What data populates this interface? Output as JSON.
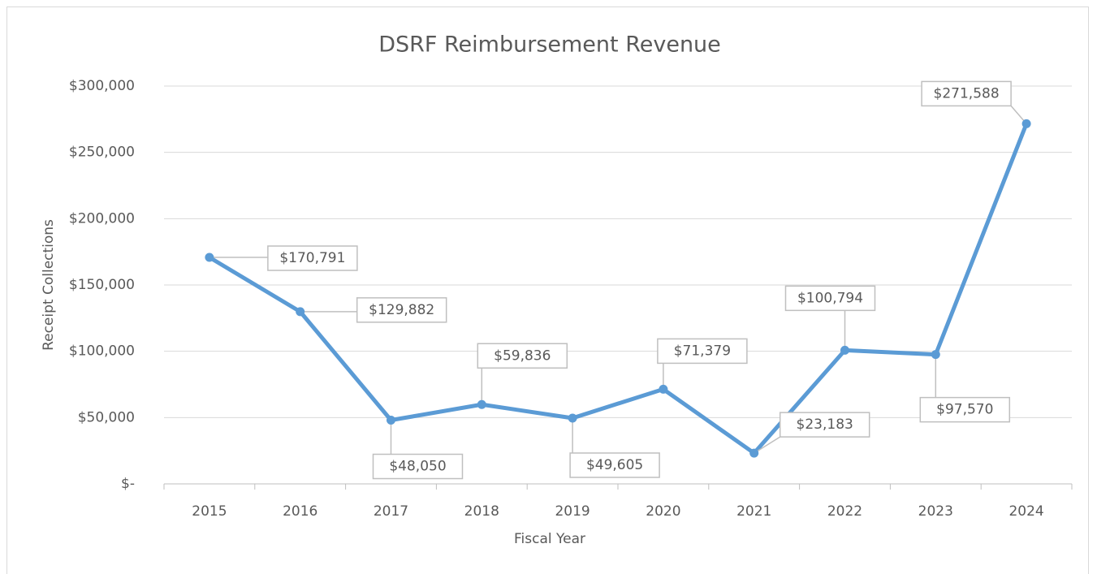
{
  "chart_data": {
    "type": "line",
    "title": "DSRF Reimbursement Revenue",
    "x_label": "Fiscal Year",
    "y_label": "Receipt Collections",
    "categories": [
      "2015",
      "2016",
      "2017",
      "2018",
      "2019",
      "2020",
      "2021",
      "2022",
      "2023",
      "2024"
    ],
    "values": [
      170791,
      129882,
      48050,
      59836,
      49605,
      71379,
      23183,
      100794,
      97570,
      271588
    ],
    "value_labels": [
      "$170,791",
      "$129,882",
      "$48,050",
      "$59,836",
      "$49,605",
      "$71,379",
      "$23,183",
      "$100,794",
      "$97,570",
      "$271,588"
    ],
    "color": "#5b9bd5",
    "ylim": [
      0,
      300000
    ],
    "yticks": [
      {
        "value": 0,
        "label": "$-"
      },
      {
        "value": 50000,
        "label": "$50,000"
      },
      {
        "value": 100000,
        "label": "$100,000"
      },
      {
        "value": 150000,
        "label": "$150,000"
      },
      {
        "value": 200000,
        "label": "$200,000"
      },
      {
        "value": 250000,
        "label": "$250,000"
      },
      {
        "value": 300000,
        "label": "$300,000"
      }
    ],
    "grid": true
  }
}
